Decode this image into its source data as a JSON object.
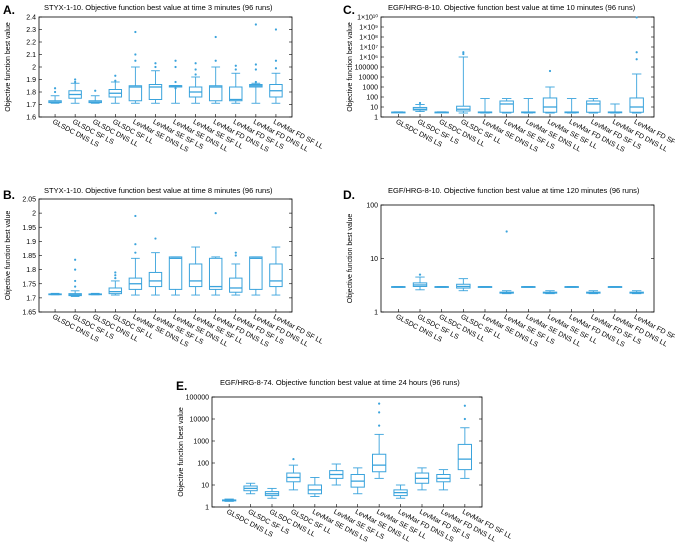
{
  "figure_description_colors": {
    "box": "#3aa3dc",
    "axis": "#000000"
  },
  "chart_data": [
    {
      "panel": "A.",
      "type": "boxplot",
      "title": "STYX-1-10. Objective function best value at time 3 minutes (96 runs)",
      "ylabel": "Objective function best value",
      "yscale": "linear",
      "ylim": [
        1.6,
        2.4
      ],
      "yticks": [
        {
          "v": 1.6,
          "t": "1.6"
        },
        {
          "v": 1.7,
          "t": "1.7"
        },
        {
          "v": 1.8,
          "t": "1.8"
        },
        {
          "v": 1.9,
          "t": "1.9"
        },
        {
          "v": 2.0,
          "t": "2"
        },
        {
          "v": 2.1,
          "t": "2.1"
        },
        {
          "v": 2.2,
          "t": "2.2"
        },
        {
          "v": 2.3,
          "t": "2.3"
        },
        {
          "v": 2.4,
          "t": "2.4"
        }
      ],
      "categories": [
        "GLSDC DNS LS",
        "GLSDC SF LS",
        "GLSDC DNS LL",
        "GLSDC SF LL",
        "LevMar SE DNS LS",
        "LevMar SE SF LS",
        "LevMar SE DNS LL",
        "LevMar SE SF LL",
        "LevMar FD DNS LS",
        "LevMar FD SF LS",
        "LevMar FD DNS LL",
        "LevMar FD SF LL"
      ],
      "boxes": [
        {
          "min": 1.71,
          "q1": 1.715,
          "med": 1.72,
          "q3": 1.73,
          "max": 1.77,
          "outliers": [
            1.8,
            1.83
          ]
        },
        {
          "min": 1.71,
          "q1": 1.75,
          "med": 1.78,
          "q3": 1.81,
          "max": 1.87,
          "outliers": [
            1.88,
            1.9
          ]
        },
        {
          "min": 1.71,
          "q1": 1.715,
          "med": 1.72,
          "q3": 1.73,
          "max": 1.77,
          "outliers": [
            1.81
          ]
        },
        {
          "min": 1.71,
          "q1": 1.76,
          "med": 1.79,
          "q3": 1.82,
          "max": 1.88,
          "outliers": [
            1.89,
            1.93
          ]
        },
        {
          "min": 1.71,
          "q1": 1.73,
          "med": 1.84,
          "q3": 1.85,
          "max": 2.0,
          "outliers": [
            2.05,
            2.1,
            2.28
          ]
        },
        {
          "min": 1.71,
          "q1": 1.74,
          "med": 1.84,
          "q3": 1.86,
          "max": 1.97,
          "outliers": [
            2.0,
            2.03
          ]
        },
        {
          "min": 1.71,
          "q1": 1.84,
          "med": 1.85,
          "q3": 1.85,
          "max": 1.85,
          "outliers": [
            1.83,
            1.88,
            2.0,
            2.05
          ]
        },
        {
          "min": 1.71,
          "q1": 1.76,
          "med": 1.8,
          "q3": 1.84,
          "max": 1.92,
          "outliers": [
            1.94,
            1.98,
            2.03
          ]
        },
        {
          "min": 1.71,
          "q1": 1.73,
          "med": 1.84,
          "q3": 1.85,
          "max": 2.0,
          "outliers": [
            2.05,
            2.24
          ]
        },
        {
          "min": 1.71,
          "q1": 1.73,
          "med": 1.74,
          "q3": 1.84,
          "max": 1.95,
          "outliers": [
            1.98,
            2.01
          ]
        },
        {
          "min": 1.71,
          "q1": 1.84,
          "med": 1.85,
          "q3": 1.86,
          "max": 1.87,
          "outliers": [
            1.88,
            1.98,
            2.02,
            2.34
          ]
        },
        {
          "min": 1.71,
          "q1": 1.76,
          "med": 1.81,
          "q3": 1.86,
          "max": 1.95,
          "outliers": [
            1.99,
            2.05,
            2.3
          ]
        }
      ]
    },
    {
      "panel": "B.",
      "type": "boxplot",
      "title": "STYX-1-10. Objective function best value at time 8 minutes (96 runs)",
      "ylabel": "Objective function best value",
      "yscale": "linear",
      "ylim": [
        1.65,
        2.05
      ],
      "yticks": [
        {
          "v": 1.65,
          "t": "1.65"
        },
        {
          "v": 1.7,
          "t": "1.7"
        },
        {
          "v": 1.75,
          "t": "1.75"
        },
        {
          "v": 1.8,
          "t": "1.8"
        },
        {
          "v": 1.85,
          "t": "1.85"
        },
        {
          "v": 1.9,
          "t": "1.9"
        },
        {
          "v": 1.95,
          "t": "1.95"
        },
        {
          "v": 2.0,
          "t": "2"
        },
        {
          "v": 2.05,
          "t": "2.05"
        }
      ],
      "categories": [
        "GLSDC DNS LS",
        "GLSDC SF LS",
        "GLSDC DNS LL",
        "GLSDC SF LL",
        "LevMar SE DNS LS",
        "LevMar SE SF LS",
        "LevMar SE DNS LL",
        "LevMar SE SF LL",
        "LevMar FD DNS LS",
        "LevMar FD SF LS",
        "LevMar FD DNS LL",
        "LevMar FD SF LL"
      ],
      "boxes": [
        {
          "min": 1.711,
          "q1": 1.712,
          "med": 1.713,
          "q3": 1.714,
          "max": 1.716,
          "outliers": []
        },
        {
          "min": 1.705,
          "q1": 1.708,
          "med": 1.711,
          "q3": 1.715,
          "max": 1.725,
          "outliers": [
            1.74,
            1.76,
            1.8,
            1.835
          ]
        },
        {
          "min": 1.711,
          "q1": 1.712,
          "med": 1.713,
          "q3": 1.714,
          "max": 1.716,
          "outliers": []
        },
        {
          "min": 1.71,
          "q1": 1.715,
          "med": 1.722,
          "q3": 1.735,
          "max": 1.76,
          "outliers": [
            1.77,
            1.78,
            1.79
          ]
        },
        {
          "min": 1.71,
          "q1": 1.73,
          "med": 1.75,
          "q3": 1.77,
          "max": 1.84,
          "outliers": [
            1.86,
            1.89,
            1.99
          ]
        },
        {
          "min": 1.71,
          "q1": 1.74,
          "med": 1.76,
          "q3": 1.79,
          "max": 1.86,
          "outliers": [
            1.91
          ]
        },
        {
          "min": 1.71,
          "q1": 1.73,
          "med": 1.84,
          "q3": 1.845,
          "max": 1.845,
          "outliers": []
        },
        {
          "min": 1.71,
          "q1": 1.74,
          "med": 1.76,
          "q3": 1.82,
          "max": 1.88,
          "outliers": []
        },
        {
          "min": 1.71,
          "q1": 1.73,
          "med": 1.74,
          "q3": 1.84,
          "max": 1.845,
          "outliers": [
            2.0
          ]
        },
        {
          "min": 1.71,
          "q1": 1.72,
          "med": 1.735,
          "q3": 1.77,
          "max": 1.82,
          "outliers": [
            1.85,
            1.86
          ]
        },
        {
          "min": 1.71,
          "q1": 1.73,
          "med": 1.84,
          "q3": 1.845,
          "max": 1.845,
          "outliers": []
        },
        {
          "min": 1.71,
          "q1": 1.74,
          "med": 1.76,
          "q3": 1.82,
          "max": 1.88,
          "outliers": []
        }
      ]
    },
    {
      "panel": "C.",
      "type": "boxplot",
      "title": "EGF/HRG-8-10. Objective function best value at time 10 minutes (96 runs)",
      "ylabel": "Objective function best value",
      "yscale": "log",
      "ylim": [
        1,
        10000000000
      ],
      "yticks": [
        {
          "v": 1,
          "t": "1"
        },
        {
          "v": 10,
          "t": "10"
        },
        {
          "v": 100,
          "t": "100"
        },
        {
          "v": 1000,
          "t": "1000"
        },
        {
          "v": 10000,
          "t": "10000"
        },
        {
          "v": 100000,
          "t": "100000"
        },
        {
          "v": 1000000,
          "t": "1×10⁶"
        },
        {
          "v": 10000000,
          "t": "1×10⁷"
        },
        {
          "v": 100000000,
          "t": "1×10⁸"
        },
        {
          "v": 1000000000,
          "t": "1×10⁹"
        },
        {
          "v": 10000000000,
          "t": "1×10¹⁰"
        }
      ],
      "categories": [
        "GLSDC DNS LS",
        "GLSDC SF LS",
        "GLSDC DNS LL",
        "GLSDC SF LL",
        "LevMar SE DNS LS",
        "LevMar SE SF LS",
        "LevMar SE DNS LL",
        "LevMar SE SF LL",
        "LevMar FD DNS LS",
        "LevMar FD SF LS",
        "LevMar FD DNS LL",
        "LevMar FD SF LL"
      ],
      "boxes": [
        {
          "min": 2.8,
          "q1": 2.9,
          "med": 3,
          "q3": 3.1,
          "max": 3.3,
          "outliers": []
        },
        {
          "min": 3.5,
          "q1": 5,
          "med": 6,
          "q3": 9,
          "max": 18,
          "outliers": [
            25
          ]
        },
        {
          "min": 2.8,
          "q1": 2.9,
          "med": 3,
          "q3": 3.1,
          "max": 3.3,
          "outliers": []
        },
        {
          "min": 2.5,
          "q1": 4,
          "med": 6,
          "q3": 12,
          "max": 1000000,
          "outliers": [
            2000000,
            3000000
          ]
        },
        {
          "min": 2.5,
          "q1": 2.8,
          "med": 3,
          "q3": 3.2,
          "max": 70,
          "outliers": []
        },
        {
          "min": 2.5,
          "q1": 3,
          "med": 20,
          "q3": 40,
          "max": 70,
          "outliers": []
        },
        {
          "min": 2.5,
          "q1": 2.8,
          "med": 3,
          "q3": 3.2,
          "max": 70,
          "outliers": []
        },
        {
          "min": 2.5,
          "q1": 3,
          "med": 10,
          "q3": 80,
          "max": 1000,
          "outliers": [
            40000
          ]
        },
        {
          "min": 2.5,
          "q1": 2.8,
          "med": 3,
          "q3": 3.2,
          "max": 70,
          "outliers": []
        },
        {
          "min": 2.5,
          "q1": 3,
          "med": 20,
          "q3": 40,
          "max": 70,
          "outliers": []
        },
        {
          "min": 2.5,
          "q1": 2.8,
          "med": 3,
          "q3": 3.2,
          "max": 20,
          "outliers": []
        },
        {
          "min": 2.5,
          "q1": 3,
          "med": 10,
          "q3": 80,
          "max": 20000,
          "outliers": [
            600000,
            3000000,
            9000000000
          ]
        }
      ]
    },
    {
      "panel": "D.",
      "type": "boxplot",
      "title": "EGF/HRG-8-10. Objective function best value at time 120 minutes (96 runs)",
      "ylabel": "Objective function best value",
      "yscale": "log",
      "ylim": [
        1,
        100
      ],
      "yticks": [
        {
          "v": 1,
          "t": "1"
        },
        {
          "v": 10,
          "t": "10"
        },
        {
          "v": 100,
          "t": "100"
        }
      ],
      "categories": [
        "GLSDC DNS LS",
        "GLSDC SF LS",
        "GLSDC DNS LL",
        "GLSDC SF LL",
        "LevMar SE DNS LS",
        "LevMar SE SF LS",
        "LevMar SE DNS LL",
        "LevMar SE SF LL",
        "LevMar FD DNS LS",
        "LevMar FD SF LS",
        "LevMar FD DNS LL",
        "LevMar FD SF LL"
      ],
      "boxes": [
        {
          "min": 2.9,
          "q1": 2.92,
          "med": 2.95,
          "q3": 2.98,
          "max": 3.0,
          "outliers": []
        },
        {
          "min": 2.6,
          "q1": 3.0,
          "med": 3.2,
          "q3": 3.5,
          "max": 4.5,
          "outliers": [
            5.0
          ]
        },
        {
          "min": 2.9,
          "q1": 2.92,
          "med": 2.95,
          "q3": 2.98,
          "max": 3.0,
          "outliers": []
        },
        {
          "min": 2.5,
          "q1": 2.8,
          "med": 3.0,
          "q3": 3.3,
          "max": 4.2,
          "outliers": []
        },
        {
          "min": 2.9,
          "q1": 2.92,
          "med": 2.95,
          "q3": 2.98,
          "max": 3.0,
          "outliers": []
        },
        {
          "min": 2.2,
          "q1": 2.25,
          "med": 2.3,
          "q3": 2.35,
          "max": 2.5,
          "outliers": [
            32
          ]
        },
        {
          "min": 2.9,
          "q1": 2.92,
          "med": 2.95,
          "q3": 2.98,
          "max": 3.0,
          "outliers": []
        },
        {
          "min": 2.2,
          "q1": 2.25,
          "med": 2.3,
          "q3": 2.35,
          "max": 2.5,
          "outliers": []
        },
        {
          "min": 2.9,
          "q1": 2.92,
          "med": 2.95,
          "q3": 2.98,
          "max": 3.0,
          "outliers": []
        },
        {
          "min": 2.2,
          "q1": 2.25,
          "med": 2.3,
          "q3": 2.35,
          "max": 2.5,
          "outliers": []
        },
        {
          "min": 2.9,
          "q1": 2.92,
          "med": 2.95,
          "q3": 2.98,
          "max": 3.0,
          "outliers": []
        },
        {
          "min": 2.2,
          "q1": 2.25,
          "med": 2.3,
          "q3": 2.35,
          "max": 2.5,
          "outliers": []
        }
      ]
    },
    {
      "panel": "E.",
      "type": "boxplot",
      "title": "EGF/HRG-8-74. Objective function best value at time 24 hours (96 runs)",
      "ylabel": "Objective function best value",
      "yscale": "log",
      "ylim": [
        1,
        100000
      ],
      "yticks": [
        {
          "v": 1,
          "t": "1"
        },
        {
          "v": 10,
          "t": "10"
        },
        {
          "v": 100,
          "t": "100"
        },
        {
          "v": 1000,
          "t": "1000"
        },
        {
          "v": 10000,
          "t": "10000"
        },
        {
          "v": 100000,
          "t": "100000"
        }
      ],
      "categories": [
        "GLSDC DNS LS",
        "GLSDC SF LS",
        "GLSDC DNS LL",
        "GLSDC SF LL",
        "LevMar SE DNS LS",
        "LevMar SE SF LS",
        "LevMar SE DNS LL",
        "LevMar SE SF LL",
        "LevMar FD DNS LS",
        "LevMar FD SF LS",
        "LevMar FD DNS LL",
        "LevMar FD SF LL"
      ],
      "boxes": [
        {
          "min": 1.8,
          "q1": 1.9,
          "med": 2.0,
          "q3": 2.1,
          "max": 2.3,
          "outliers": []
        },
        {
          "min": 4,
          "q1": 5.5,
          "med": 7,
          "q3": 9,
          "max": 12,
          "outliers": []
        },
        {
          "min": 2.5,
          "q1": 3.3,
          "med": 4,
          "q3": 5,
          "max": 7,
          "outliers": []
        },
        {
          "min": 6,
          "q1": 14,
          "med": 22,
          "q3": 35,
          "max": 80,
          "outliers": [
            150
          ]
        },
        {
          "min": 3,
          "q1": 4,
          "med": 6,
          "q3": 10,
          "max": 22,
          "outliers": []
        },
        {
          "min": 10,
          "q1": 20,
          "med": 30,
          "q3": 45,
          "max": 90,
          "outliers": []
        },
        {
          "min": 4,
          "q1": 8,
          "med": 15,
          "q3": 30,
          "max": 60,
          "outliers": []
        },
        {
          "min": 20,
          "q1": 40,
          "med": 80,
          "q3": 250,
          "max": 2000,
          "outliers": [
            5000,
            20000,
            50000
          ]
        },
        {
          "min": 2.5,
          "q1": 3.3,
          "med": 4.5,
          "q3": 6,
          "max": 10,
          "outliers": []
        },
        {
          "min": 6,
          "q1": 12,
          "med": 20,
          "q3": 35,
          "max": 60,
          "outliers": []
        },
        {
          "min": 6,
          "q1": 14,
          "med": 20,
          "q3": 30,
          "max": 50,
          "outliers": []
        },
        {
          "min": 20,
          "q1": 50,
          "med": 150,
          "q3": 700,
          "max": 4000,
          "outliers": [
            10000,
            40000
          ]
        }
      ]
    }
  ]
}
